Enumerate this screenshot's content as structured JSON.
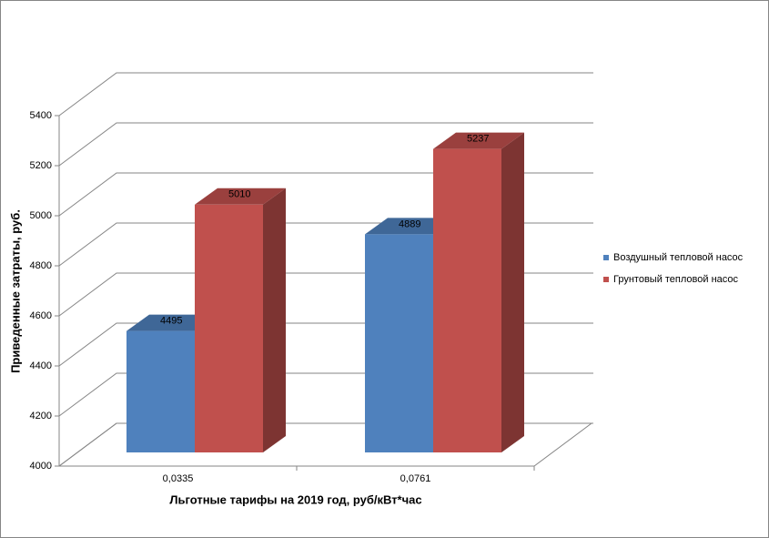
{
  "chart_data": {
    "type": "bar3d",
    "y_label": "Приведенные затраты, руб.",
    "x_label": "Льготные тарифы на 2019 год, руб/кВт*час",
    "categories": [
      "0,0335",
      "0,0761"
    ],
    "series": [
      {
        "name": "Воздушный тепловой насос",
        "color": "#4f81bd",
        "values": [
          4495,
          4889
        ]
      },
      {
        "name": "Грунтовый тепловой насос",
        "color": "#c0504d",
        "values": [
          5010,
          5237
        ]
      }
    ],
    "ylim": [
      4000,
      5400
    ],
    "yticks": [
      4000,
      4200,
      4400,
      4600,
      4800,
      5000,
      5200,
      5400
    ],
    "grid": true,
    "legend": "right"
  }
}
